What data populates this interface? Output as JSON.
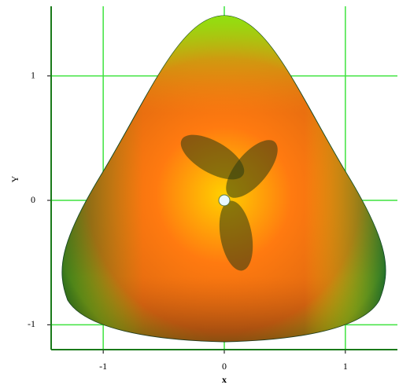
{
  "chart_data": {
    "type": "surface",
    "x_label": "x",
    "y_label": "Y",
    "xlim": [
      -1.43,
      1.43
    ],
    "ylim": [
      -1.2,
      1.56
    ],
    "xticks": [
      -1,
      0,
      1
    ],
    "yticks": [
      -1,
      0,
      1
    ],
    "grid": true,
    "grid_color": "#3fe33f"
  }
}
